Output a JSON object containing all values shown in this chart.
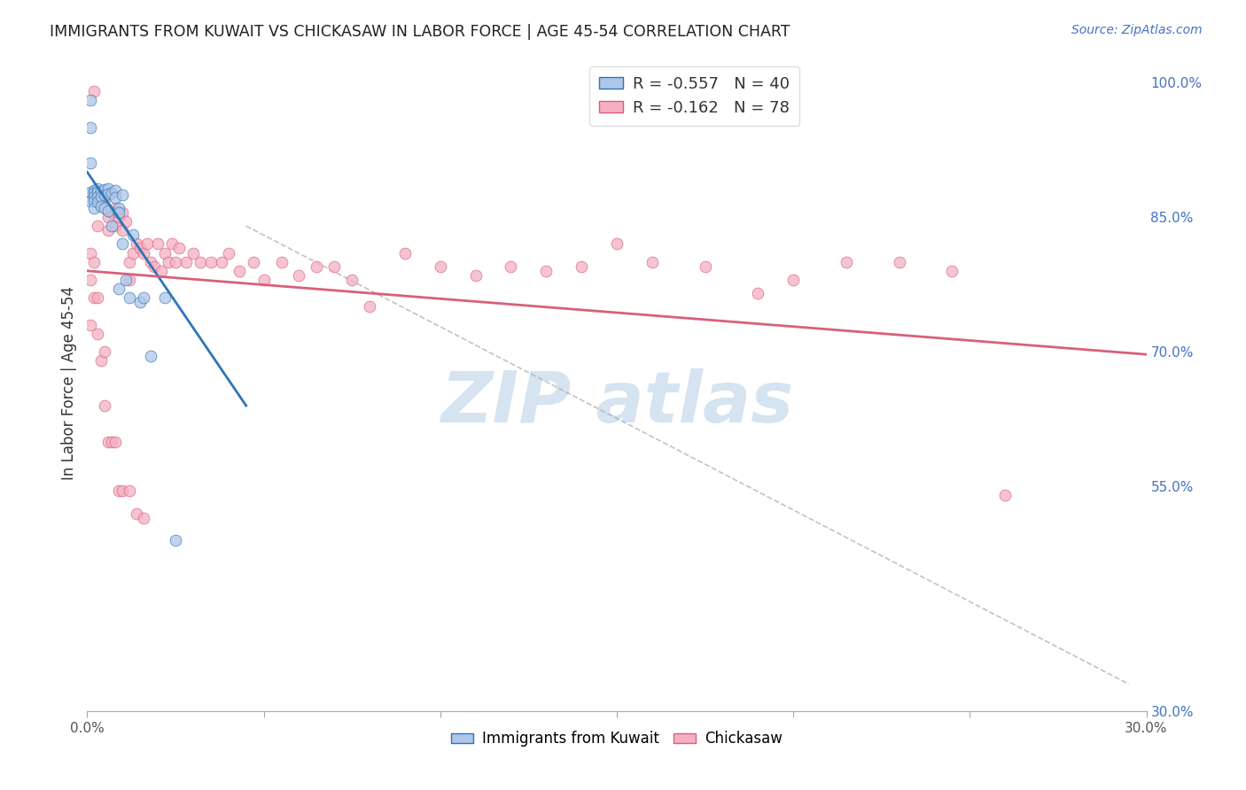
{
  "title": "IMMIGRANTS FROM KUWAIT VS CHICKASAW IN LABOR FORCE | AGE 45-54 CORRELATION CHART",
  "source": "Source: ZipAtlas.com",
  "ylabel": "In Labor Force | Age 45-54",
  "xlim": [
    0.0,
    0.3
  ],
  "ylim": [
    0.3,
    1.03
  ],
  "yticks": [
    1.0,
    0.85,
    0.7,
    0.55,
    0.3
  ],
  "ytick_labels": [
    "100.0%",
    "85.0%",
    "70.0%",
    "55.0%",
    "30.0%"
  ],
  "xticks": [
    0.0,
    0.05,
    0.1,
    0.15,
    0.2,
    0.25,
    0.3
  ],
  "xtick_labels": [
    "0.0%",
    "",
    "",
    "",
    "",
    "",
    "30.0%"
  ],
  "blue_R": -0.557,
  "blue_N": 40,
  "pink_R": -0.162,
  "pink_N": 78,
  "blue_label": "Immigrants from Kuwait",
  "pink_label": "Chickasaw",
  "background_color": "#ffffff",
  "grid_color": "#cccccc",
  "title_color": "#222222",
  "right_axis_color": "#4472c4",
  "blue_scatter_color": "#aec6e8",
  "blue_line_color": "#2e75b6",
  "pink_scatter_color": "#f4b0c2",
  "pink_line_color": "#d95f7a",
  "watermark_color": "#c5d8ea",
  "blue_points_x": [
    0.001,
    0.001,
    0.001,
    0.001,
    0.001,
    0.002,
    0.002,
    0.002,
    0.002,
    0.002,
    0.003,
    0.003,
    0.003,
    0.003,
    0.004,
    0.004,
    0.004,
    0.005,
    0.005,
    0.005,
    0.006,
    0.006,
    0.006,
    0.007,
    0.007,
    0.008,
    0.008,
    0.009,
    0.009,
    0.009,
    0.01,
    0.01,
    0.011,
    0.012,
    0.013,
    0.015,
    0.016,
    0.018,
    0.022,
    0.025
  ],
  "blue_points_y": [
    0.98,
    0.95,
    0.91,
    0.878,
    0.868,
    0.88,
    0.877,
    0.873,
    0.868,
    0.86,
    0.882,
    0.878,
    0.873,
    0.867,
    0.879,
    0.873,
    0.862,
    0.881,
    0.875,
    0.86,
    0.882,
    0.876,
    0.857,
    0.877,
    0.84,
    0.88,
    0.872,
    0.86,
    0.855,
    0.77,
    0.875,
    0.82,
    0.78,
    0.76,
    0.83,
    0.755,
    0.76,
    0.695,
    0.76,
    0.49
  ],
  "pink_points_x": [
    0.002,
    0.003,
    0.003,
    0.004,
    0.005,
    0.006,
    0.006,
    0.007,
    0.008,
    0.008,
    0.009,
    0.01,
    0.01,
    0.011,
    0.012,
    0.012,
    0.013,
    0.014,
    0.015,
    0.016,
    0.017,
    0.018,
    0.019,
    0.02,
    0.021,
    0.022,
    0.023,
    0.024,
    0.025,
    0.026,
    0.028,
    0.03,
    0.032,
    0.035,
    0.038,
    0.04,
    0.043,
    0.047,
    0.05,
    0.055,
    0.06,
    0.065,
    0.07,
    0.075,
    0.08,
    0.09,
    0.1,
    0.11,
    0.12,
    0.13,
    0.14,
    0.15,
    0.16,
    0.175,
    0.19,
    0.2,
    0.215,
    0.23,
    0.245,
    0.26,
    0.001,
    0.001,
    0.001,
    0.002,
    0.002,
    0.003,
    0.003,
    0.004,
    0.005,
    0.005,
    0.006,
    0.007,
    0.008,
    0.009,
    0.01,
    0.012,
    0.014,
    0.016
  ],
  "pink_points_y": [
    0.99,
    0.87,
    0.84,
    0.875,
    0.87,
    0.85,
    0.835,
    0.855,
    0.86,
    0.84,
    0.85,
    0.855,
    0.835,
    0.845,
    0.8,
    0.78,
    0.81,
    0.82,
    0.815,
    0.81,
    0.82,
    0.8,
    0.795,
    0.82,
    0.79,
    0.81,
    0.8,
    0.82,
    0.8,
    0.815,
    0.8,
    0.81,
    0.8,
    0.8,
    0.8,
    0.81,
    0.79,
    0.8,
    0.78,
    0.8,
    0.785,
    0.795,
    0.795,
    0.78,
    0.75,
    0.81,
    0.795,
    0.785,
    0.795,
    0.79,
    0.795,
    0.82,
    0.8,
    0.795,
    0.765,
    0.78,
    0.8,
    0.8,
    0.79,
    0.54,
    0.81,
    0.78,
    0.73,
    0.8,
    0.76,
    0.76,
    0.72,
    0.69,
    0.7,
    0.64,
    0.6,
    0.6,
    0.6,
    0.545,
    0.545,
    0.545,
    0.52,
    0.515
  ],
  "blue_line_x0": 0.0,
  "blue_line_x1": 0.045,
  "blue_line_y0": 0.9,
  "blue_line_y1": 0.64,
  "pink_line_x0": 0.0,
  "pink_line_x1": 0.3,
  "pink_line_y0": 0.79,
  "pink_line_y1": 0.697,
  "dash_line_x0": 0.045,
  "dash_line_x1": 0.295,
  "dash_line_y0": 0.84,
  "dash_line_y1": 0.33
}
